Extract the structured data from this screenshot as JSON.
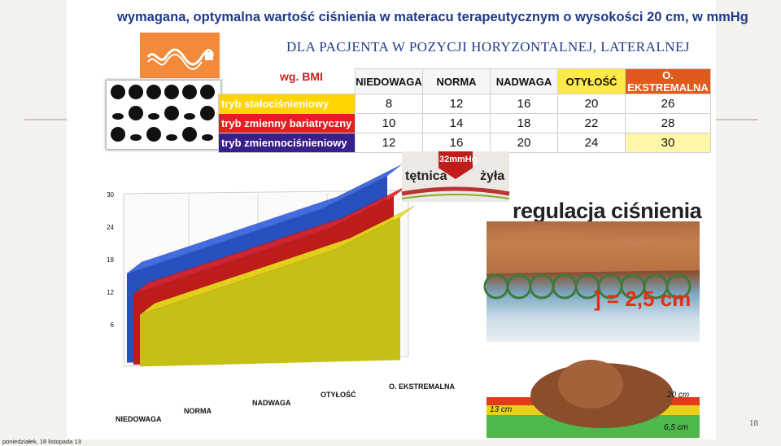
{
  "title": "wymagana, optymalna wartość ciśnienia w materacu terapeutycznym o wysokości 20 cm, w mmHg",
  "subtitle": "DLA PACJENTA W POZYCJI HORYZONTALNEJ, LATERALNEJ",
  "bmi_label": "wg. BMI",
  "table": {
    "columns": [
      "NIEDOWAGA",
      "NORMA",
      "NADWAGA",
      "OTYŁOŚĆ",
      "O. EKSTREMALNA"
    ],
    "column_colors": [
      "#f6f6f6",
      "#f6f6f6",
      "#f6f6f6",
      "#ffe84a",
      "#e05a1c"
    ],
    "rows": [
      {
        "label": "tryb stałociśnieniowy",
        "color": "#ffd400",
        "values": [
          "8",
          "12",
          "16",
          "20",
          "26"
        ]
      },
      {
        "label": "tryb zmienny bariatryczny",
        "color": "#e21f1f",
        "values": [
          "10",
          "14",
          "18",
          "22",
          "28"
        ]
      },
      {
        "label": "tryb zmiennociśnieniowy",
        "color": "#3a1f8a",
        "values": [
          "12",
          "16",
          "20",
          "24",
          "30"
        ]
      }
    ]
  },
  "chart_data": {
    "type": "area",
    "categories": [
      "NIEDOWAGA",
      "NORMA",
      "NADWAGA",
      "OTYŁOŚĆ",
      "O. EKSTREMALNA"
    ],
    "ylim": [
      0,
      30
    ],
    "yticks": [
      "6",
      "12",
      "18",
      "24",
      "30"
    ],
    "series": [
      {
        "name": "tryb zmiennociśnieniowy",
        "color": "#2f5de0",
        "values": [
          12,
          16,
          20,
          24,
          30
        ]
      },
      {
        "name": "tryb zmienny bariatryczny",
        "color": "#e02020",
        "values": [
          10,
          14,
          18,
          22,
          28
        ]
      },
      {
        "name": "tryb stałociśnieniowy",
        "color": "#e8e21a",
        "values": [
          8,
          12,
          16,
          20,
          26
        ]
      }
    ]
  },
  "artery": {
    "left": "tętnica",
    "right": "żyła",
    "value": "32mmHg"
  },
  "regulation_title": "regulacja ciśnienia",
  "measure": "] = 2,5 cm",
  "bottom_labels": {
    "left": "13 cm",
    "top_right": "20 cm",
    "bottom_right": "6,5 cm"
  },
  "page_number": "18",
  "footer": "poniedziałek, 18 listopada 13"
}
